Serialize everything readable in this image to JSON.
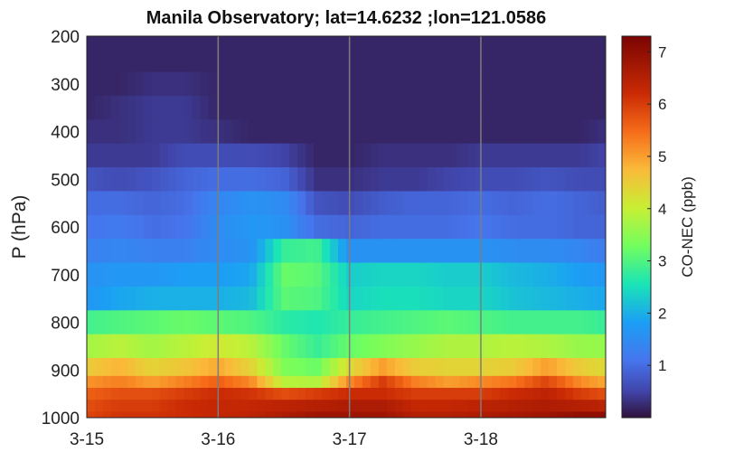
{
  "chart_data": {
    "type": "heatmap",
    "title": "Manila Observatory; lat=14.6232 ;lon=121.0586",
    "ylabel": "P (hPa)",
    "xlabel": "",
    "y_ticks": [
      "200",
      "300",
      "400",
      "500",
      "600",
      "700",
      "800",
      "900",
      "1000"
    ],
    "x_ticks": [
      "3-15",
      "3-16",
      "3-17",
      "3-18"
    ],
    "ylim": [
      200,
      1000
    ],
    "y_reversed": true,
    "xlim_days": [
      0,
      3.95
    ],
    "day_gridlines": true,
    "colorbar": {
      "label": "CO-NEC (ppb)",
      "ticks": [
        "1",
        "2",
        "3",
        "4",
        "5",
        "6",
        "7"
      ],
      "range": [
        0,
        7.3
      ],
      "colormap": "turbo"
    },
    "pressure_levels": [
      200,
      250,
      300,
      350,
      400,
      450,
      500,
      550,
      600,
      650,
      700,
      750,
      800,
      850,
      900,
      925,
      950,
      975,
      1000
    ],
    "anchor_days": [
      0,
      0.25,
      0.5,
      0.75,
      1.0,
      1.25,
      1.5,
      1.75,
      2.0,
      2.25,
      2.5,
      2.75,
      3.0,
      3.25,
      3.5,
      3.75,
      3.95
    ],
    "z_grid": [
      [
        0.2,
        0.2,
        0.2,
        0.2,
        0.2,
        0.2,
        0.2,
        0.2,
        0.2,
        0.2,
        0.2,
        0.2,
        0.2,
        0.2,
        0.2,
        0.2,
        0.2
      ],
      [
        0.2,
        0.2,
        0.2,
        0.2,
        0.2,
        0.2,
        0.2,
        0.2,
        0.2,
        0.2,
        0.2,
        0.2,
        0.2,
        0.2,
        0.2,
        0.2,
        0.2
      ],
      [
        0.2,
        0.2,
        0.3,
        0.3,
        0.2,
        0.2,
        0.2,
        0.2,
        0.2,
        0.2,
        0.2,
        0.2,
        0.2,
        0.2,
        0.2,
        0.2,
        0.2
      ],
      [
        0.2,
        0.3,
        0.4,
        0.4,
        0.2,
        0.2,
        0.2,
        0.2,
        0.2,
        0.2,
        0.2,
        0.2,
        0.2,
        0.2,
        0.2,
        0.2,
        0.2
      ],
      [
        0.3,
        0.3,
        0.4,
        0.4,
        0.3,
        0.2,
        0.2,
        0.2,
        0.2,
        0.2,
        0.2,
        0.2,
        0.2,
        0.2,
        0.2,
        0.2,
        0.3
      ],
      [
        0.4,
        0.4,
        0.4,
        0.6,
        0.6,
        0.6,
        0.5,
        0.2,
        0.2,
        0.3,
        0.3,
        0.3,
        0.4,
        0.4,
        0.4,
        0.4,
        0.5
      ],
      [
        0.7,
        0.6,
        0.7,
        0.9,
        1.0,
        1.0,
        0.9,
        0.3,
        0.3,
        0.4,
        0.4,
        0.5,
        0.6,
        0.6,
        0.7,
        0.6,
        0.6
      ],
      [
        1.0,
        1.0,
        0.9,
        1.0,
        1.4,
        1.6,
        1.5,
        0.7,
        0.6,
        0.8,
        0.9,
        0.9,
        1.0,
        0.9,
        1.0,
        0.9,
        0.8
      ],
      [
        1.1,
        1.2,
        1.0,
        1.1,
        1.5,
        1.7,
        1.6,
        1.0,
        0.9,
        1.0,
        1.0,
        1.0,
        1.1,
        1.0,
        1.0,
        0.9,
        0.9
      ],
      [
        1.3,
        1.4,
        1.3,
        1.3,
        1.5,
        1.6,
        2.8,
        2.9,
        1.6,
        1.6,
        1.6,
        1.6,
        1.6,
        1.5,
        1.5,
        1.4,
        1.2
      ],
      [
        1.6,
        1.7,
        1.7,
        1.8,
        1.8,
        1.9,
        3.2,
        3.1,
        2.3,
        2.4,
        2.4,
        2.3,
        2.3,
        2.1,
        2.0,
        1.8,
        1.7
      ],
      [
        1.7,
        1.9,
        2.0,
        2.0,
        2.0,
        2.1,
        3.1,
        3.0,
        2.4,
        2.5,
        2.5,
        2.4,
        2.4,
        2.2,
        2.1,
        2.0,
        1.9
      ],
      [
        2.9,
        3.0,
        3.1,
        3.2,
        3.1,
        3.0,
        2.7,
        2.6,
        2.8,
        2.9,
        3.0,
        3.1,
        3.0,
        2.9,
        2.9,
        2.9,
        2.8
      ],
      [
        3.7,
        3.9,
        3.7,
        3.9,
        4.1,
        3.9,
        3.2,
        2.8,
        3.2,
        3.4,
        3.6,
        3.8,
        3.8,
        3.9,
        3.8,
        3.6,
        3.6
      ],
      [
        4.5,
        4.8,
        4.4,
        4.6,
        4.9,
        4.4,
        3.4,
        3.2,
        4.3,
        5.0,
        4.5,
        4.4,
        4.4,
        4.5,
        5.0,
        4.5,
        4.3
      ],
      [
        5.1,
        5.3,
        5.0,
        5.3,
        5.6,
        5.2,
        3.9,
        3.8,
        5.2,
        6.0,
        5.3,
        5.0,
        5.2,
        5.4,
        5.9,
        5.2,
        4.9
      ],
      [
        5.6,
        5.8,
        5.8,
        6.0,
        6.2,
        6.1,
        5.8,
        6.0,
        6.2,
        6.2,
        6.0,
        6.0,
        6.0,
        6.2,
        6.4,
        6.0,
        5.8
      ],
      [
        5.8,
        6.0,
        6.0,
        6.2,
        6.3,
        6.3,
        6.4,
        6.5,
        6.6,
        6.6,
        6.3,
        6.3,
        6.4,
        6.5,
        6.6,
        6.5,
        6.4
      ],
      [
        5.9,
        6.1,
        6.1,
        6.2,
        6.3,
        6.4,
        6.6,
        6.8,
        6.8,
        6.8,
        6.5,
        6.5,
        6.6,
        6.7,
        6.8,
        7.0,
        7.0
      ]
    ]
  }
}
